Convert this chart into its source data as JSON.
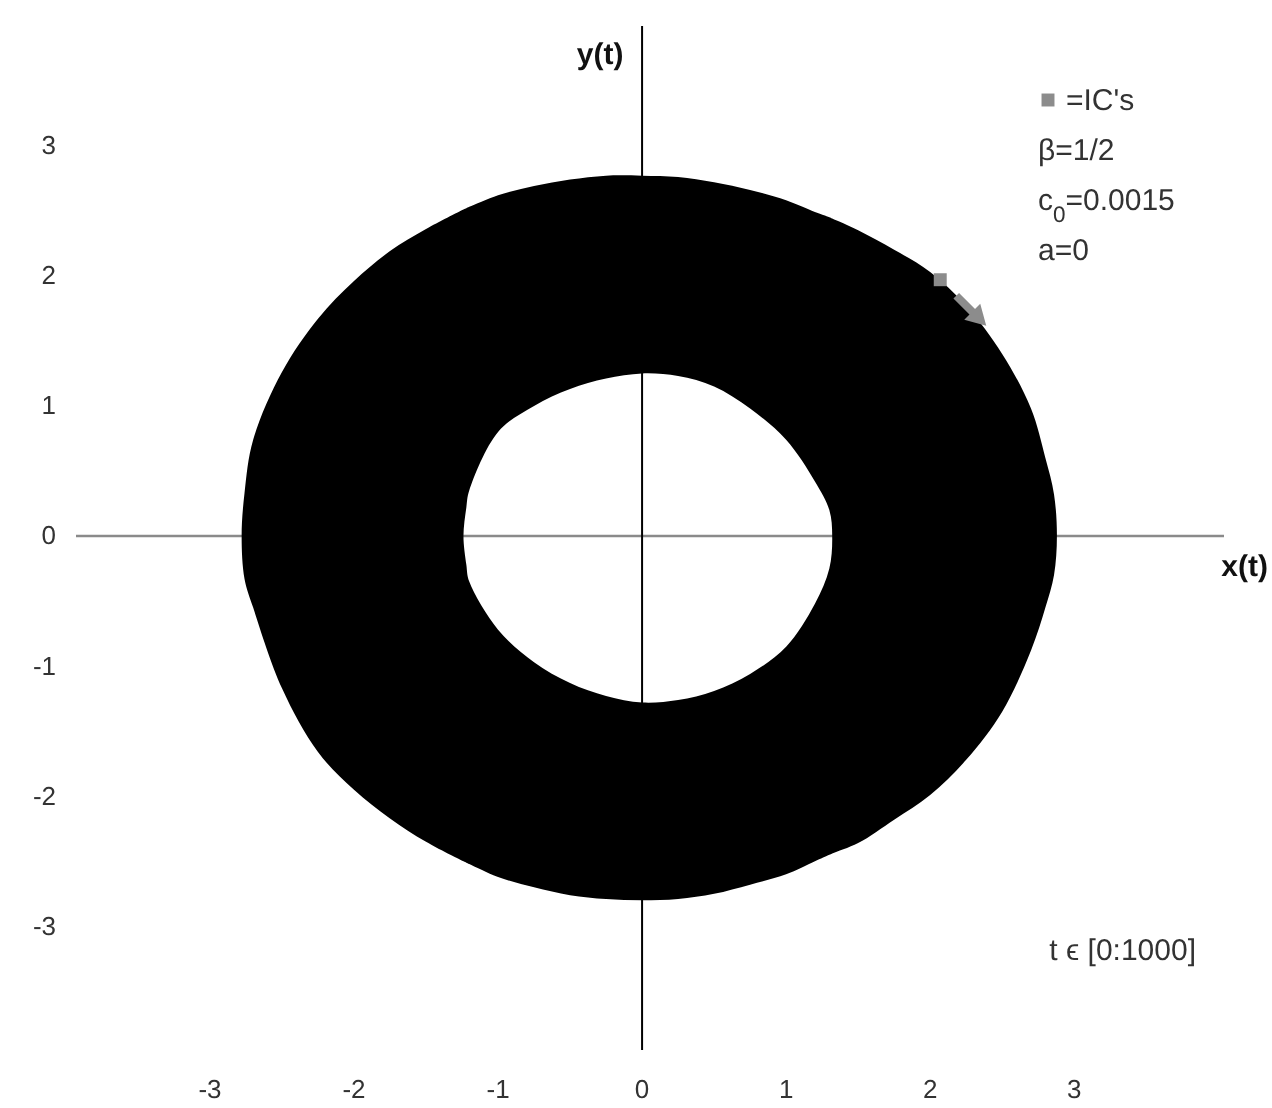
{
  "chart_data": {
    "type": "scatter",
    "xlabel": "x(t)",
    "ylabel": "y(t)",
    "xlim": [
      -3.93,
      4.04
    ],
    "ylim": [
      -3.95,
      3.92
    ],
    "xticks": [
      -3,
      -2,
      -1,
      0,
      1,
      2,
      3
    ],
    "yticks": [
      -3,
      -2,
      -1,
      0,
      1,
      2,
      3
    ],
    "legend": "top right",
    "marker": "square",
    "annotations": [
      "β=1/2",
      "c$_{0}$=0.0015",
      "a=0",
      "t ϵ [0:1000]"
    ],
    "series": [
      {
        "name": "=IC's",
        "color": "#8c8c8c",
        "x": [
          2.07
        ],
        "values": [
          1.97
        ]
      }
    ]
  }
}
